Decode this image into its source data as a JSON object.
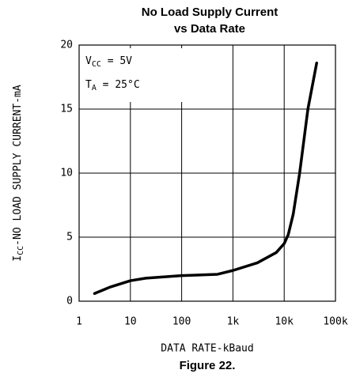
{
  "chart_data": {
    "type": "line",
    "title": [
      "No Load Supply Current",
      "vs Data Rate"
    ],
    "x": [
      2,
      4,
      10,
      20,
      100,
      500,
      1000,
      3000,
      7000,
      10000,
      12000,
      15000,
      20000,
      29000,
      43000
    ],
    "values": [
      0.6,
      1.1,
      1.6,
      1.8,
      2.0,
      2.1,
      2.4,
      3.0,
      3.8,
      4.5,
      5.2,
      6.8,
      10,
      15,
      18.6
    ],
    "color": "#000000",
    "xscale": "log",
    "xlim": [
      1,
      100000
    ],
    "xticks": [
      1,
      10,
      100,
      {
        "value": 1000,
        "label": "1k"
      },
      {
        "value": 10000,
        "label": "10k"
      },
      {
        "value": 100000,
        "label": "100k"
      }
    ],
    "ylim": [
      0,
      20
    ],
    "yticks": [
      0,
      5,
      10,
      15,
      20
    ],
    "grid": true,
    "xlabel": "DATA RATE-kBaud",
    "ylabel": {
      "symbol": "I",
      "subscript": "CC",
      "text": "-NO LOAD SUPPLY CURRENT-mA"
    },
    "annotations": [
      {
        "symbol": "V",
        "subscript": "CC",
        "text": " = 5V"
      },
      {
        "symbol": "T",
        "subscript": "A",
        "text": " = 25°C"
      }
    ],
    "caption": "Figure 22."
  }
}
